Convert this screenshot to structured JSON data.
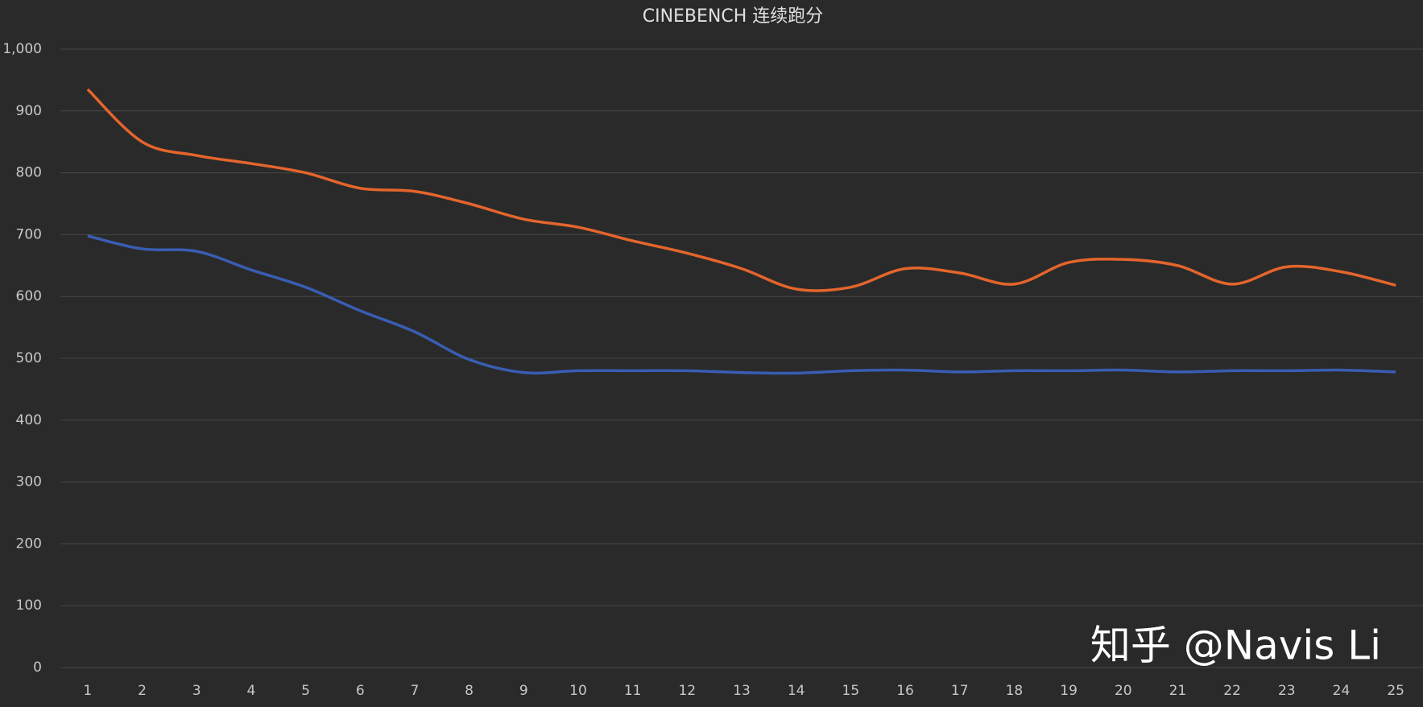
{
  "chart_data": {
    "type": "line",
    "title": "CINEBENCH 连续跑分",
    "categories": [
      "1",
      "2",
      "3",
      "4",
      "5",
      "6",
      "7",
      "8",
      "9",
      "10",
      "11",
      "12",
      "13",
      "14",
      "15",
      "16",
      "17",
      "18",
      "19",
      "20",
      "21",
      "22",
      "23",
      "24",
      "25"
    ],
    "series": [
      {
        "color": "#e4652c",
        "values": [
          935,
          850,
          828,
          815,
          800,
          775,
          770,
          750,
          725,
          712,
          690,
          670,
          645,
          612,
          615,
          645,
          638,
          620,
          655,
          660,
          650,
          620,
          648,
          640,
          618
        ]
      },
      {
        "color": "#3a5db3",
        "values": [
          698,
          677,
          673,
          643,
          615,
          577,
          543,
          498,
          477,
          480,
          480,
          480,
          477,
          476,
          480,
          481,
          478,
          480,
          480,
          481,
          478,
          480,
          480,
          481,
          478
        ]
      }
    ],
    "ylim": [
      0,
      1000
    ],
    "yticks": [
      0,
      100,
      200,
      300,
      400,
      500,
      600,
      700,
      800,
      900,
      {
        "value": 1000,
        "label": "1,000"
      }
    ],
    "grid": true,
    "annotation": "知乎 @Navis Li"
  }
}
